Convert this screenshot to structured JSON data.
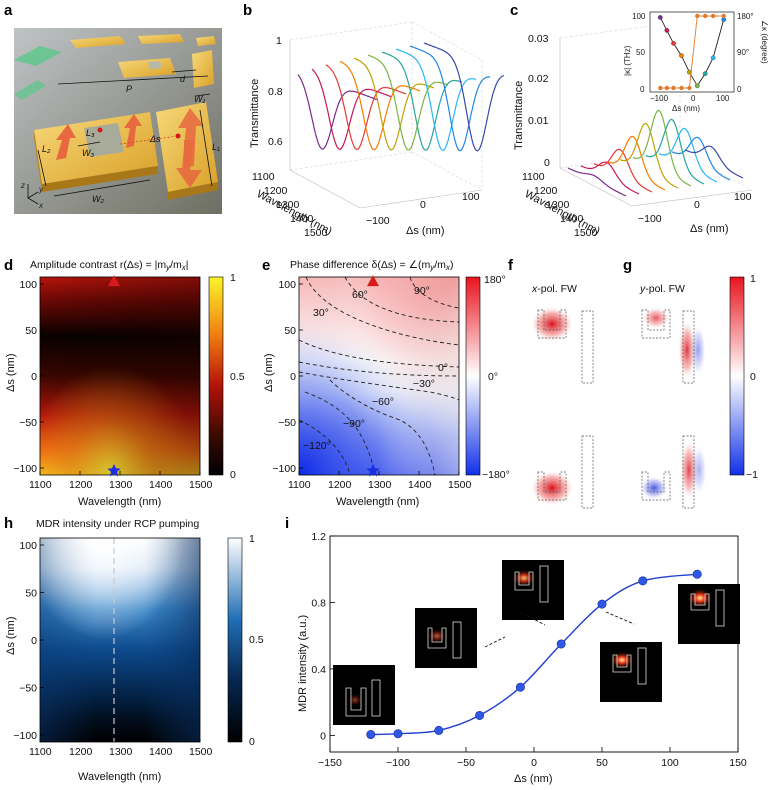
{
  "panel_labels": [
    "a",
    "b",
    "c",
    "d",
    "e",
    "f",
    "g",
    "h",
    "i"
  ],
  "colors": {
    "gold": "#e8b23a",
    "arrow_orange": "#e8693f",
    "line_blue": "#1f3fd0",
    "inset_black": "#222222",
    "inset_orange": "#e07a2e",
    "star_blue": "#1a2fe0",
    "triangle_red": "#d61c1c"
  },
  "panel_a": {
    "labels": [
      "P",
      "d",
      "W₁",
      "L₂",
      "L₃",
      "W₃",
      "W₂",
      "Δs",
      "L₁"
    ],
    "axes": [
      "z",
      "y",
      "x"
    ]
  },
  "panel_b": {
    "zlabel": "Transmittance",
    "ylabel": "Wavelength (nm)",
    "xlabel": "Δs (nm)",
    "zticks": [
      "1",
      "0.8",
      "0.6"
    ],
    "yticks": [
      "1100",
      "1200",
      "1300",
      "1400",
      "1500"
    ],
    "xticks": [
      "−100",
      "0",
      "100"
    ]
  },
  "panel_c": {
    "zlabel": "Transmittance",
    "ylabel": "Wavelength (nm)",
    "xlabel": "Δs (nm)",
    "zticks": [
      "0.03",
      "0.02",
      "0.01",
      "0"
    ],
    "yticks": [
      "1100",
      "1200",
      "1300",
      "1400",
      "1500"
    ],
    "xticks": [
      "−100",
      "0",
      "100"
    ],
    "inset": {
      "ylabel_left": "|κ| (THz)",
      "ylabel_right": "∠κ (degree)",
      "xlabel": "Δs (nm)",
      "yticks_left": [
        "100",
        "50",
        "0"
      ],
      "yticks_right": [
        "180°",
        "90°",
        "0"
      ],
      "xticks": [
        "−100",
        "0",
        "100"
      ]
    }
  },
  "panel_d": {
    "title": "Amplitude contrast r(Δs) = |m",
    "title_sub_y": "y",
    "title_mid": "/m",
    "title_sub_x": "x",
    "title_end": "|",
    "xlabel": "Wavelength (nm)",
    "ylabel": "Δs (nm)",
    "xticks": [
      "1100",
      "1200",
      "1300",
      "1400",
      "1500"
    ],
    "yticks": [
      "100",
      "50",
      "0",
      "−50",
      "−100"
    ],
    "cbar_ticks": [
      "1",
      "0.5",
      "0"
    ]
  },
  "panel_e": {
    "title": "Phase difference δ(Δs) = ∠(m",
    "title_sub_y": "y",
    "title_mid": "/m",
    "title_sub_x": "x",
    "title_end": ")",
    "xlabel": "Wavelength (nm)",
    "ylabel": "Δs (nm)",
    "xticks": [
      "1100",
      "1200",
      "1300",
      "1400",
      "1500"
    ],
    "yticks": [
      "100",
      "50",
      "0",
      "−50",
      "−100"
    ],
    "cbar_ticks": [
      "180°",
      "0°",
      "−180°"
    ],
    "contour_labels": [
      "60°",
      "90°",
      "30°",
      "0°",
      "−30°",
      "−60°",
      "−90°",
      "−120°"
    ]
  },
  "panel_f": {
    "title_pol": "x",
    "title_rest": "-pol. FW"
  },
  "panel_g": {
    "title_pol": "y",
    "title_rest": "-pol. FW",
    "cbar_ticks": [
      "1",
      "0",
      "−1"
    ]
  },
  "panel_h": {
    "title": "MDR intensity under RCP pumping",
    "xlabel": "Wavelength (nm)",
    "ylabel": "Δs (nm)",
    "xticks": [
      "1100",
      "1200",
      "1300",
      "1400",
      "1500"
    ],
    "yticks": [
      "100",
      "50",
      "0",
      "−50",
      "−100"
    ],
    "cbar_ticks": [
      "1",
      "0.5",
      "0"
    ]
  },
  "chart_data": [
    {
      "type": "line",
      "panel": "i",
      "xlabel": "Δs (nm)",
      "ylabel": "MDR intensity (a.u.)",
      "xlim": [
        -150,
        150
      ],
      "ylim": [
        -0.1,
        1.2
      ],
      "xticks": [
        "−150",
        "−100",
        "−50",
        "0",
        "50",
        "100",
        "150"
      ],
      "yticks": [
        "0",
        "0.4",
        "0.8",
        "1.2"
      ],
      "x": [
        -120,
        -100,
        -70,
        -40,
        -10,
        20,
        50,
        80,
        120
      ],
      "y": [
        0.005,
        0.01,
        0.03,
        0.12,
        0.29,
        0.55,
        0.79,
        0.93,
        0.97
      ]
    },
    {
      "type": "heatmap",
      "panel": "d",
      "xlim": [
        1100,
        1500
      ],
      "ylim": [
        -120,
        120
      ],
      "markers": [
        {
          "shape": "star",
          "x": 1285,
          "y": -115
        },
        {
          "shape": "triangle",
          "x": 1285,
          "y": 115
        }
      ]
    },
    {
      "type": "heatmap",
      "panel": "e",
      "xlim": [
        1100,
        1500
      ],
      "ylim": [
        -120,
        120
      ],
      "markers": [
        {
          "shape": "star",
          "x": 1285,
          "y": -115
        },
        {
          "shape": "triangle",
          "x": 1285,
          "y": 115
        }
      ]
    },
    {
      "type": "heatmap",
      "panel": "h",
      "xlim": [
        1100,
        1500
      ],
      "ylim": [
        -120,
        120
      ],
      "dashed_line_x": 1285
    },
    {
      "type": "scatter",
      "panel": "c-inset",
      "x": [
        -120,
        -95,
        -70,
        -40,
        -10,
        20,
        50,
        80,
        120
      ],
      "kappa_abs": [
        98,
        80,
        62,
        45,
        22,
        3,
        20,
        42,
        95
      ],
      "kappa_phase": [
        0,
        0,
        0,
        0,
        0,
        180,
        180,
        180,
        180
      ]
    }
  ]
}
